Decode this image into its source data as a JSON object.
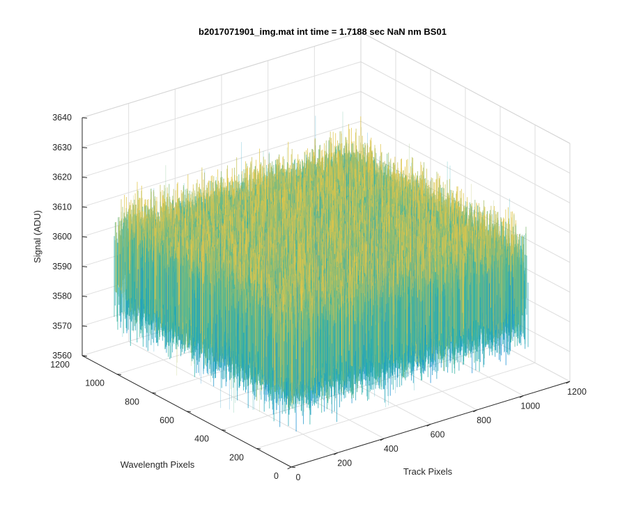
{
  "chart_data": {
    "type": "surface",
    "title": "b2017071901_img.mat int time = 1.7188 sec  NaN nm BS01",
    "xlabel": "Track Pixels",
    "ylabel": "Wavelength Pixels",
    "zlabel": "Signal (ADU)",
    "xlim": [
      0,
      1200
    ],
    "ylim": [
      0,
      1200
    ],
    "zlim": [
      3560,
      3640
    ],
    "x_ticks": [
      "0",
      "200",
      "400",
      "600",
      "800",
      "1000",
      "1200"
    ],
    "y_ticks": [
      "0",
      "200",
      "400",
      "600",
      "800",
      "1000",
      "1200"
    ],
    "z_ticks": [
      "3560",
      "3570",
      "3580",
      "3590",
      "3600",
      "3610",
      "3620",
      "3630",
      "3640"
    ],
    "grid": true,
    "colormap": "parula",
    "surface": {
      "x_range": [
        0,
        1024
      ],
      "y_range": [
        0,
        1024
      ],
      "mean_signal": 3598,
      "noise_range": [
        3565,
        3630
      ]
    },
    "colors": {
      "low": "#1a8fd6",
      "mid": "#2bb3a8",
      "high": "#e0c54a",
      "axis": "#262626",
      "grid": "#dedede"
    }
  }
}
